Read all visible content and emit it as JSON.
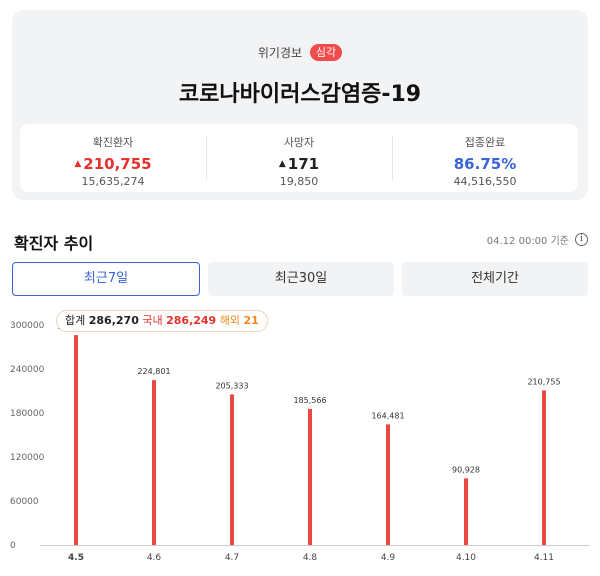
{
  "alert": {
    "label": "위기경보",
    "level": "심각"
  },
  "title": "코로나바이러스감염증-19",
  "stats": [
    {
      "label": "확진환자",
      "value": "210,755",
      "sub": "15,635,274",
      "color": "red"
    },
    {
      "label": "사망자",
      "value": "171",
      "sub": "19,850",
      "color": "dark"
    },
    {
      "label": "접종완료",
      "value": "86.75%",
      "sub": "44,516,550",
      "color": "blue"
    }
  ],
  "section": {
    "title": "확진자 추이",
    "timestamp": "04.12 00:00 기준"
  },
  "tabs": [
    "최근7일",
    "최근30일",
    "전체기간"
  ],
  "tooltip": {
    "total_label": "합계",
    "total": "286,270",
    "domestic_label": "국내",
    "domestic": "286,249",
    "overseas_label": "해외",
    "overseas": "21"
  },
  "colors": {
    "bar": "#e84a43",
    "accent": "#3a64d8",
    "red": "#e5322d"
  },
  "chart_data": {
    "type": "bar",
    "categories": [
      "4.5",
      "4.6",
      "4.7",
      "4.8",
      "4.9",
      "4.10",
      "4.11"
    ],
    "values": [
      286270,
      224801,
      205333,
      185566,
      164481,
      90928,
      210755
    ],
    "value_labels": [
      "286,270",
      "224,801",
      "205,333",
      "185,566",
      "164,481",
      "90,928",
      "210,755"
    ],
    "yticks": [
      0,
      60000,
      120000,
      180000,
      240000,
      300000
    ],
    "ylim": [
      0,
      300000
    ],
    "grid": false,
    "selected_index": 0
  }
}
